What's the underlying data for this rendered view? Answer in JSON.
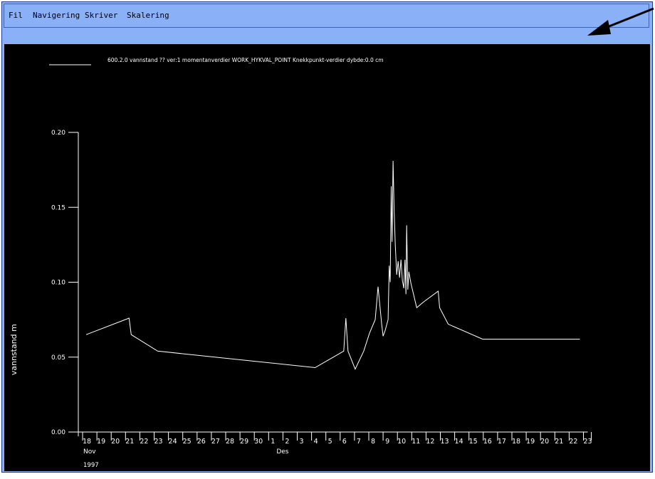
{
  "menu": {
    "items": [
      {
        "label": "Fil"
      },
      {
        "label": "Navigering"
      },
      {
        "label": "Skriver"
      },
      {
        "label": "Skalering"
      }
    ]
  },
  "colors": {
    "background": "#000000",
    "line": "#ffffff",
    "window": "#8ab0f8",
    "arrow": "#000000"
  },
  "chart_data": {
    "type": "line",
    "title": "",
    "legend": [
      {
        "label": "600.2.0 vannstand ?? ver:1 momentanverdier WORK_HYKVAL_POINT Knekkpunkt-verdier dybde:0.0 cm"
      }
    ],
    "ylabel": "vannstand  m",
    "xlabel": "",
    "ylim": [
      0,
      0.2
    ],
    "yticks": [
      "0.00",
      "0.05",
      "0.10",
      "0.15",
      "0.20"
    ],
    "xticks": [
      "18",
      "19",
      "20",
      "21",
      "22",
      "23",
      "24",
      "25",
      "26",
      "27",
      "28",
      "29",
      "30",
      "1",
      "2",
      "3",
      "4",
      "5",
      "6",
      "7",
      "8",
      "9",
      "10",
      "11",
      "12",
      "13",
      "14",
      "15",
      "16",
      "17",
      "18",
      "19",
      "20",
      "21",
      "22",
      "23"
    ],
    "xticks_range": {
      "first": 0,
      "last": 35
    },
    "month_labels": [
      {
        "label": "Nov",
        "tick": 0
      },
      {
        "label": "Des",
        "tick": 13.5
      }
    ],
    "year_label": "1997",
    "series": [
      {
        "x": [
          0,
          3.0,
          3.15,
          5.0,
          16.0,
          18.0,
          18.15,
          18.3,
          18.8,
          19.4,
          19.8,
          20.2,
          20.4,
          20.65,
          20.75,
          20.9,
          21.1,
          21.18,
          21.25,
          21.32,
          21.38,
          21.45,
          21.52,
          21.6,
          21.7,
          21.8,
          21.9,
          22.0,
          22.1,
          22.2,
          22.28,
          22.35,
          22.4,
          22.48,
          22.55,
          22.7,
          23.1,
          23.6,
          24.6,
          24.7,
          25.3,
          27.7,
          34.5
        ],
        "y": [
          0.065,
          0.076,
          0.065,
          0.054,
          0.043,
          0.054,
          0.076,
          0.054,
          0.042,
          0.054,
          0.066,
          0.075,
          0.097,
          0.072,
          0.064,
          0.068,
          0.075,
          0.111,
          0.1,
          0.164,
          0.127,
          0.181,
          0.148,
          0.125,
          0.105,
          0.114,
          0.103,
          0.115,
          0.101,
          0.096,
          0.115,
          0.092,
          0.138,
          0.095,
          0.107,
          0.099,
          0.083,
          0.087,
          0.094,
          0.083,
          0.072,
          0.062,
          0.062
        ]
      }
    ]
  }
}
